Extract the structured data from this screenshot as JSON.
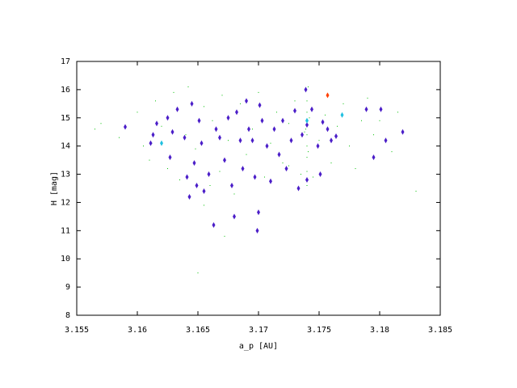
{
  "chart_data": {
    "type": "scatter",
    "x_label": "a_p [AU]",
    "y_label": "H [mag]",
    "xlim": [
      3.155,
      3.185
    ],
    "ylim": [
      8,
      17
    ],
    "xticks": [
      3.155,
      3.16,
      3.165,
      3.17,
      3.175,
      3.18,
      3.185
    ],
    "yticks": [
      8,
      9,
      10,
      11,
      12,
      13,
      14,
      15,
      16,
      17
    ],
    "series": [
      {
        "color": "#00c000",
        "marker": "dot",
        "x": [
          3.157,
          3.1585,
          3.16,
          3.1605,
          3.161,
          3.1615,
          3.162,
          3.1625,
          3.163,
          3.1635,
          3.164,
          3.1642,
          3.1648,
          3.165,
          3.1655,
          3.166,
          3.1662,
          3.1668,
          3.167,
          3.1675,
          3.168,
          3.1685,
          3.169,
          3.1695,
          3.17,
          3.1705,
          3.171,
          3.1715,
          3.172,
          3.1725,
          3.173,
          3.1735,
          3.1738,
          3.174,
          3.174,
          3.174,
          3.174,
          3.174,
          3.174,
          3.174,
          3.174,
          3.1741,
          3.1741,
          3.1739,
          3.1742,
          3.1745,
          3.175,
          3.1755,
          3.176,
          3.1765,
          3.177,
          3.1775,
          3.178,
          3.1785,
          3.179,
          3.1795,
          3.18,
          3.181,
          3.1815,
          3.183,
          3.1565,
          3.1655,
          3.1672,
          3.1612,
          3.1725
        ],
        "values": [
          14.8,
          14.3,
          15.2,
          14.0,
          13.5,
          15.6,
          14.7,
          13.2,
          15.9,
          12.8,
          14.4,
          16.1,
          13.9,
          9.5,
          15.4,
          12.6,
          14.9,
          13.1,
          15.8,
          14.2,
          12.3,
          15.5,
          13.7,
          14.6,
          15.9,
          12.9,
          14.1,
          15.2,
          13.4,
          14.8,
          15.6,
          13.0,
          14.5,
          12.6,
          13.1,
          13.6,
          14.0,
          14.4,
          14.8,
          15.2,
          15.6,
          16.1,
          13.8,
          14.6,
          15.0,
          12.9,
          14.2,
          15.1,
          13.4,
          14.7,
          15.5,
          14.0,
          13.2,
          14.9,
          15.7,
          14.4,
          14.9,
          13.8,
          15.2,
          12.4,
          14.6,
          11.9,
          10.8,
          14.1,
          13.3
        ]
      },
      {
        "color": "#4b1ec8",
        "marker": "diamond",
        "x": [
          3.159,
          3.1611,
          3.1613,
          3.1616,
          3.1625,
          3.1627,
          3.1629,
          3.1633,
          3.1639,
          3.1641,
          3.1643,
          3.1645,
          3.1647,
          3.1649,
          3.1651,
          3.1653,
          3.1655,
          3.1659,
          3.1663,
          3.1665,
          3.1668,
          3.1672,
          3.1675,
          3.1678,
          3.168,
          3.1682,
          3.1685,
          3.1687,
          3.169,
          3.1692,
          3.1695,
          3.1697,
          3.1699,
          3.17,
          3.1701,
          3.1703,
          3.1707,
          3.171,
          3.1713,
          3.1717,
          3.172,
          3.1723,
          3.1727,
          3.173,
          3.1733,
          3.1736,
          3.1739,
          3.174,
          3.174,
          3.1744,
          3.1749,
          3.1751,
          3.1753,
          3.1757,
          3.176,
          3.1764,
          3.1789,
          3.1795,
          3.1801,
          3.1805,
          3.1819
        ],
        "values": [
          14.68,
          14.1,
          14.4,
          14.8,
          15.0,
          13.6,
          14.5,
          15.3,
          14.3,
          12.9,
          12.2,
          15.5,
          13.4,
          12.6,
          14.9,
          14.1,
          12.4,
          13.0,
          11.2,
          14.6,
          14.3,
          13.5,
          15.0,
          12.6,
          11.5,
          15.2,
          14.2,
          13.2,
          15.6,
          14.6,
          14.2,
          12.9,
          11.0,
          11.65,
          15.45,
          14.9,
          14.0,
          12.75,
          14.6,
          13.7,
          14.9,
          13.2,
          14.2,
          15.25,
          12.5,
          14.4,
          16.0,
          14.75,
          12.8,
          15.3,
          14.0,
          13.0,
          14.85,
          14.6,
          14.2,
          14.35,
          15.3,
          13.6,
          15.3,
          14.2,
          14.5
        ]
      },
      {
        "color": "#20c0e0",
        "marker": "diamond",
        "x": [
          3.162,
          3.1769,
          3.174
        ],
        "values": [
          14.1,
          15.1,
          14.9
        ]
      },
      {
        "color": "#ff4000",
        "marker": "diamond",
        "x": [
          3.1757
        ],
        "values": [
          15.8
        ]
      }
    ]
  }
}
